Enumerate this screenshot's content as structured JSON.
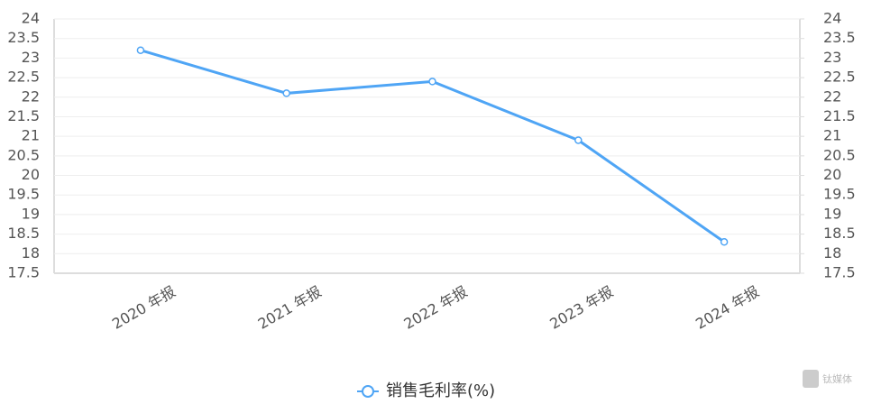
{
  "chart_data": {
    "type": "line",
    "categories": [
      "2020 年报",
      "2021 年报",
      "2022 年报",
      "2023 年报",
      "2024 年报"
    ],
    "series": [
      {
        "name": "销售毛利率(%)",
        "color": "#4fa5f5",
        "values": [
          23.2,
          22.1,
          22.4,
          20.9,
          18.3
        ]
      }
    ],
    "ylim": [
      17.5,
      24
    ],
    "yticks": [
      17.5,
      18,
      18.5,
      19,
      19.5,
      20,
      20.5,
      21,
      21.5,
      22,
      22.5,
      23,
      23.5,
      24
    ],
    "y2lim": [
      17.5,
      24
    ],
    "y2ticks": [
      17.5,
      18,
      18.5,
      19,
      19.5,
      20,
      20.5,
      21,
      21.5,
      22,
      22.5,
      23,
      23.5,
      24
    ],
    "grid": true,
    "legend": "bottom",
    "watermark": "钛媒体"
  }
}
